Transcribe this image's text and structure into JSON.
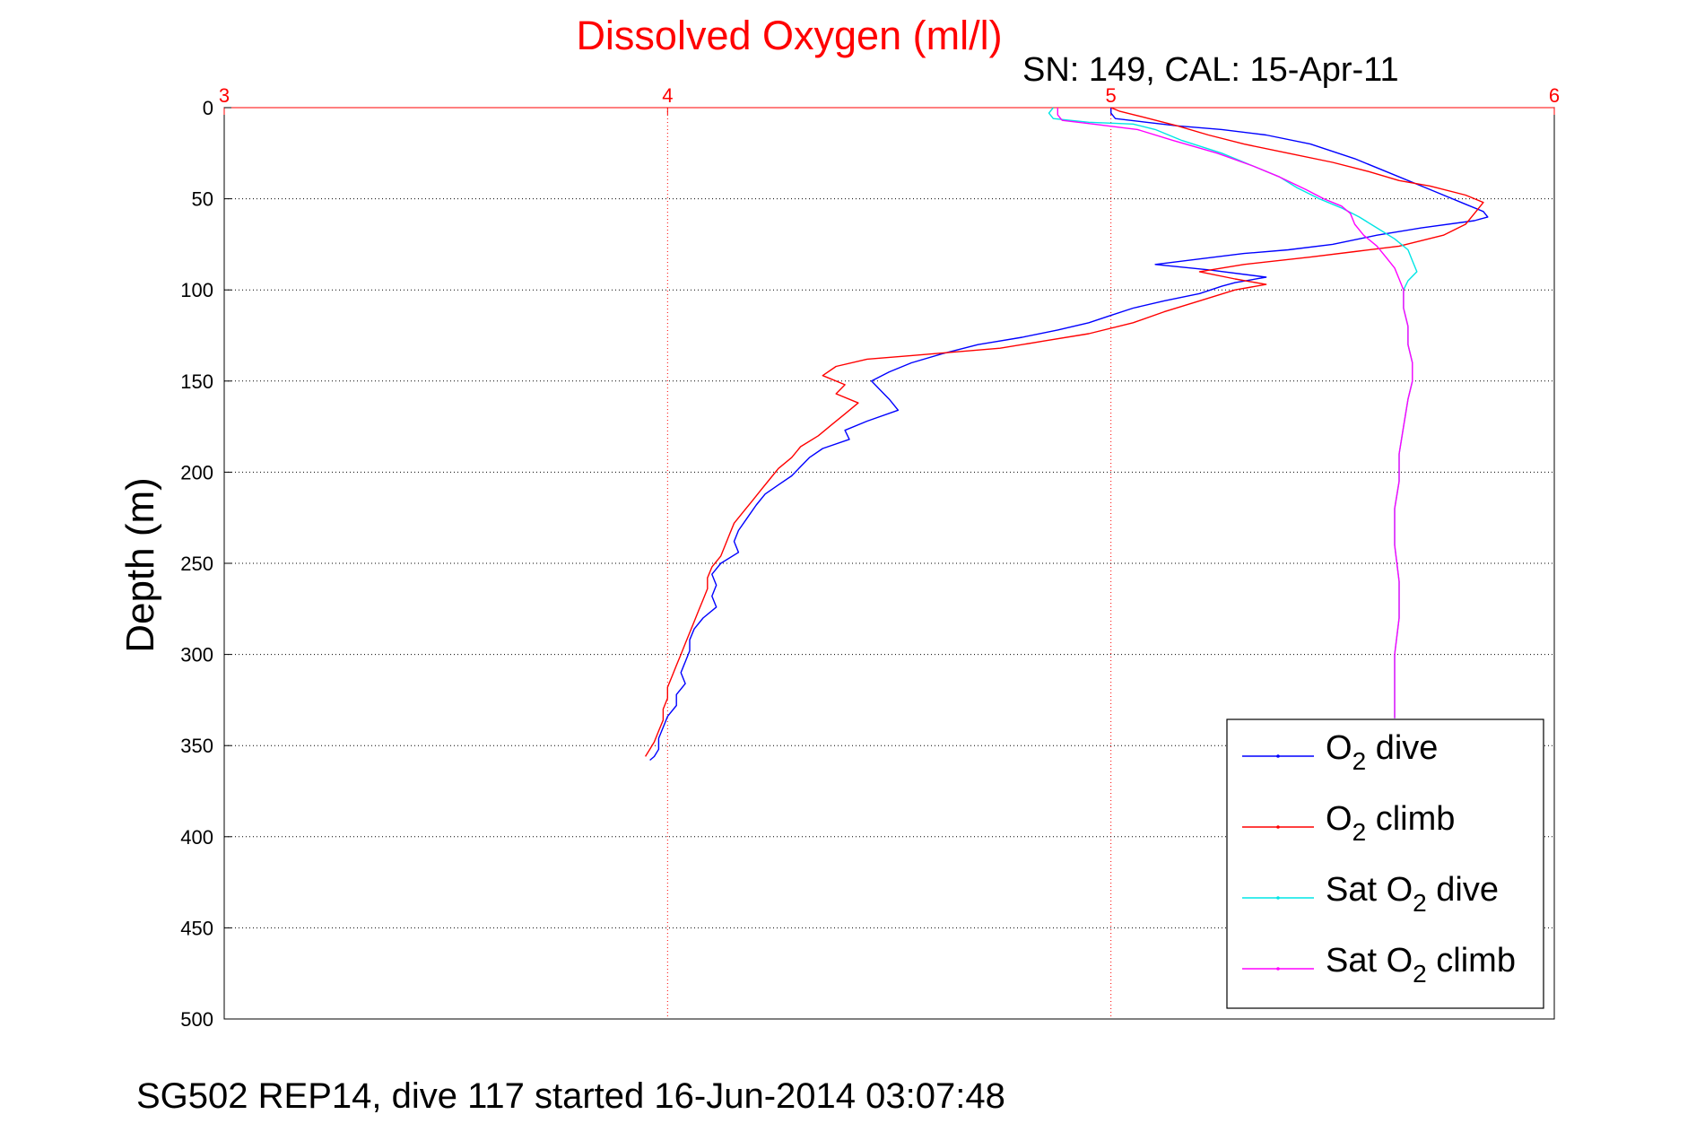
{
  "chart_data": {
    "type": "line",
    "title": "Dissolved Oxygen (ml/l)",
    "subtitle": "SN: 149, CAL: 15-Apr-11",
    "xlabel": "",
    "ylabel": "Depth (m)",
    "xlim": [
      3,
      6
    ],
    "ylim": [
      0,
      500
    ],
    "y_reversed": true,
    "x_axis_position": "top",
    "xticks": [
      3,
      4,
      5,
      6
    ],
    "yticks": [
      0,
      50,
      100,
      150,
      200,
      250,
      300,
      350,
      400,
      450,
      500
    ],
    "grid": true,
    "legend_position": "bottom-right",
    "series": [
      {
        "key": "o2_dive",
        "name_main": "O",
        "name_sub": "2",
        "name_rest": " dive",
        "color": "#0000ff",
        "points": [
          [
            5.0,
            0
          ],
          [
            5.0,
            3
          ],
          [
            5.01,
            6
          ],
          [
            5.08,
            8
          ],
          [
            5.15,
            10
          ],
          [
            5.25,
            12
          ],
          [
            5.35,
            15
          ],
          [
            5.45,
            20
          ],
          [
            5.55,
            28
          ],
          [
            5.65,
            38
          ],
          [
            5.72,
            45
          ],
          [
            5.8,
            53
          ],
          [
            5.84,
            57
          ],
          [
            5.85,
            60
          ],
          [
            5.82,
            62
          ],
          [
            5.7,
            66
          ],
          [
            5.6,
            70
          ],
          [
            5.5,
            75
          ],
          [
            5.4,
            78
          ],
          [
            5.3,
            80
          ],
          [
            5.2,
            83
          ],
          [
            5.1,
            86
          ],
          [
            5.22,
            89
          ],
          [
            5.35,
            93
          ],
          [
            5.28,
            96
          ],
          [
            5.25,
            98
          ],
          [
            5.2,
            102
          ],
          [
            5.12,
            106
          ],
          [
            5.05,
            110
          ],
          [
            5.0,
            114
          ],
          [
            4.95,
            118
          ],
          [
            4.88,
            122
          ],
          [
            4.8,
            126
          ],
          [
            4.7,
            130
          ],
          [
            4.62,
            135
          ],
          [
            4.55,
            140
          ],
          [
            4.5,
            145
          ],
          [
            4.46,
            150
          ],
          [
            4.48,
            155
          ],
          [
            4.5,
            160
          ],
          [
            4.52,
            166
          ],
          [
            4.45,
            172
          ],
          [
            4.4,
            177
          ],
          [
            4.41,
            182
          ],
          [
            4.35,
            187
          ],
          [
            4.32,
            192
          ],
          [
            4.3,
            197
          ],
          [
            4.28,
            202
          ],
          [
            4.25,
            207
          ],
          [
            4.22,
            212
          ],
          [
            4.2,
            218
          ],
          [
            4.18,
            225
          ],
          [
            4.16,
            232
          ],
          [
            4.15,
            238
          ],
          [
            4.16,
            244
          ],
          [
            4.12,
            250
          ],
          [
            4.1,
            256
          ],
          [
            4.11,
            262
          ],
          [
            4.1,
            268
          ],
          [
            4.11,
            274
          ],
          [
            4.08,
            280
          ],
          [
            4.06,
            286
          ],
          [
            4.05,
            292
          ],
          [
            4.05,
            298
          ],
          [
            4.04,
            304
          ],
          [
            4.03,
            310
          ],
          [
            4.04,
            316
          ],
          [
            4.02,
            322
          ],
          [
            4.02,
            328
          ],
          [
            4.0,
            334
          ],
          [
            3.99,
            340
          ],
          [
            3.98,
            346
          ],
          [
            3.98,
            352
          ],
          [
            3.97,
            356
          ],
          [
            3.96,
            358
          ]
        ]
      },
      {
        "key": "o2_climb",
        "name_main": "O",
        "name_sub": "2",
        "name_rest": " climb",
        "color": "#ff0000",
        "points": [
          [
            3.95,
            356
          ],
          [
            3.96,
            352
          ],
          [
            3.97,
            348
          ],
          [
            3.98,
            342
          ],
          [
            3.99,
            336
          ],
          [
            3.99,
            330
          ],
          [
            4.0,
            324
          ],
          [
            4.0,
            318
          ],
          [
            4.01,
            312
          ],
          [
            4.02,
            306
          ],
          [
            4.03,
            300
          ],
          [
            4.04,
            294
          ],
          [
            4.05,
            288
          ],
          [
            4.06,
            282
          ],
          [
            4.07,
            276
          ],
          [
            4.08,
            270
          ],
          [
            4.09,
            264
          ],
          [
            4.09,
            258
          ],
          [
            4.1,
            252
          ],
          [
            4.12,
            246
          ],
          [
            4.13,
            240
          ],
          [
            4.14,
            234
          ],
          [
            4.15,
            228
          ],
          [
            4.17,
            222
          ],
          [
            4.19,
            216
          ],
          [
            4.21,
            210
          ],
          [
            4.23,
            204
          ],
          [
            4.25,
            198
          ],
          [
            4.28,
            192
          ],
          [
            4.3,
            186
          ],
          [
            4.34,
            180
          ],
          [
            4.37,
            174
          ],
          [
            4.4,
            168
          ],
          [
            4.43,
            162
          ],
          [
            4.38,
            157
          ],
          [
            4.4,
            152
          ],
          [
            4.35,
            147
          ],
          [
            4.38,
            142
          ],
          [
            4.45,
            138
          ],
          [
            4.55,
            136
          ],
          [
            4.65,
            134
          ],
          [
            4.75,
            132
          ],
          [
            4.85,
            128
          ],
          [
            4.95,
            124
          ],
          [
            5.05,
            118
          ],
          [
            5.12,
            112
          ],
          [
            5.2,
            106
          ],
          [
            5.28,
            100
          ],
          [
            5.35,
            97
          ],
          [
            5.28,
            94
          ],
          [
            5.2,
            90
          ],
          [
            5.3,
            86
          ],
          [
            5.45,
            82
          ],
          [
            5.55,
            79
          ],
          [
            5.65,
            76
          ],
          [
            5.75,
            70
          ],
          [
            5.8,
            64
          ],
          [
            5.82,
            58
          ],
          [
            5.84,
            52
          ],
          [
            5.8,
            48
          ],
          [
            5.72,
            43
          ],
          [
            5.65,
            40
          ],
          [
            5.58,
            35
          ],
          [
            5.5,
            30
          ],
          [
            5.4,
            25
          ],
          [
            5.3,
            20
          ],
          [
            5.22,
            15
          ],
          [
            5.15,
            10
          ],
          [
            5.07,
            5
          ],
          [
            5.02,
            2
          ],
          [
            5.0,
            0
          ]
        ]
      },
      {
        "key": "sat_o2_dive",
        "name_main": "Sat O",
        "name_sub": "2",
        "name_rest": " dive",
        "color": "#00e5e5",
        "points": [
          [
            4.87,
            0
          ],
          [
            4.86,
            3
          ],
          [
            4.87,
            6
          ],
          [
            4.95,
            8
          ],
          [
            5.05,
            9
          ],
          [
            5.1,
            12
          ],
          [
            5.16,
            18
          ],
          [
            5.25,
            25
          ],
          [
            5.32,
            32
          ],
          [
            5.38,
            38
          ],
          [
            5.42,
            44
          ],
          [
            5.47,
            50
          ],
          [
            5.52,
            55
          ],
          [
            5.56,
            60
          ],
          [
            5.6,
            66
          ],
          [
            5.64,
            72
          ],
          [
            5.67,
            78
          ],
          [
            5.68,
            84
          ],
          [
            5.69,
            90
          ],
          [
            5.67,
            95
          ],
          [
            5.66,
            100
          ],
          [
            5.66,
            110
          ],
          [
            5.67,
            120
          ],
          [
            5.67,
            130
          ],
          [
            5.68,
            140
          ],
          [
            5.68,
            150
          ],
          [
            5.67,
            160
          ],
          [
            5.66,
            175
          ],
          [
            5.65,
            190
          ],
          [
            5.65,
            205
          ],
          [
            5.64,
            220
          ],
          [
            5.64,
            240
          ],
          [
            5.65,
            260
          ],
          [
            5.65,
            280
          ],
          [
            5.64,
            300
          ],
          [
            5.64,
            320
          ],
          [
            5.64,
            335
          ]
        ]
      },
      {
        "key": "sat_o2_climb",
        "name_main": "Sat O",
        "name_sub": "2",
        "name_rest": " climb",
        "color": "#ff00ff",
        "points": [
          [
            5.64,
            335
          ],
          [
            5.64,
            320
          ],
          [
            5.64,
            300
          ],
          [
            5.65,
            280
          ],
          [
            5.65,
            260
          ],
          [
            5.64,
            240
          ],
          [
            5.64,
            220
          ],
          [
            5.65,
            205
          ],
          [
            5.65,
            190
          ],
          [
            5.66,
            175
          ],
          [
            5.67,
            160
          ],
          [
            5.68,
            150
          ],
          [
            5.68,
            140
          ],
          [
            5.67,
            130
          ],
          [
            5.67,
            120
          ],
          [
            5.66,
            110
          ],
          [
            5.66,
            100
          ],
          [
            5.65,
            94
          ],
          [
            5.64,
            88
          ],
          [
            5.62,
            82
          ],
          [
            5.6,
            76
          ],
          [
            5.57,
            70
          ],
          [
            5.55,
            64
          ],
          [
            5.54,
            58
          ],
          [
            5.52,
            54
          ],
          [
            5.48,
            50
          ],
          [
            5.44,
            45
          ],
          [
            5.38,
            38
          ],
          [
            5.32,
            32
          ],
          [
            5.24,
            25
          ],
          [
            5.14,
            18
          ],
          [
            5.06,
            12
          ],
          [
            4.96,
            9
          ],
          [
            4.89,
            7
          ],
          [
            4.88,
            4
          ],
          [
            4.88,
            0
          ]
        ]
      }
    ]
  },
  "footer": "SG502 REP14, dive 117 started 16-Jun-2014 03:07:48",
  "colors": {
    "title": "#ff0000",
    "x_tick": "#ff0000",
    "grid_x": "#ff0000",
    "grid_y": "#000000"
  }
}
